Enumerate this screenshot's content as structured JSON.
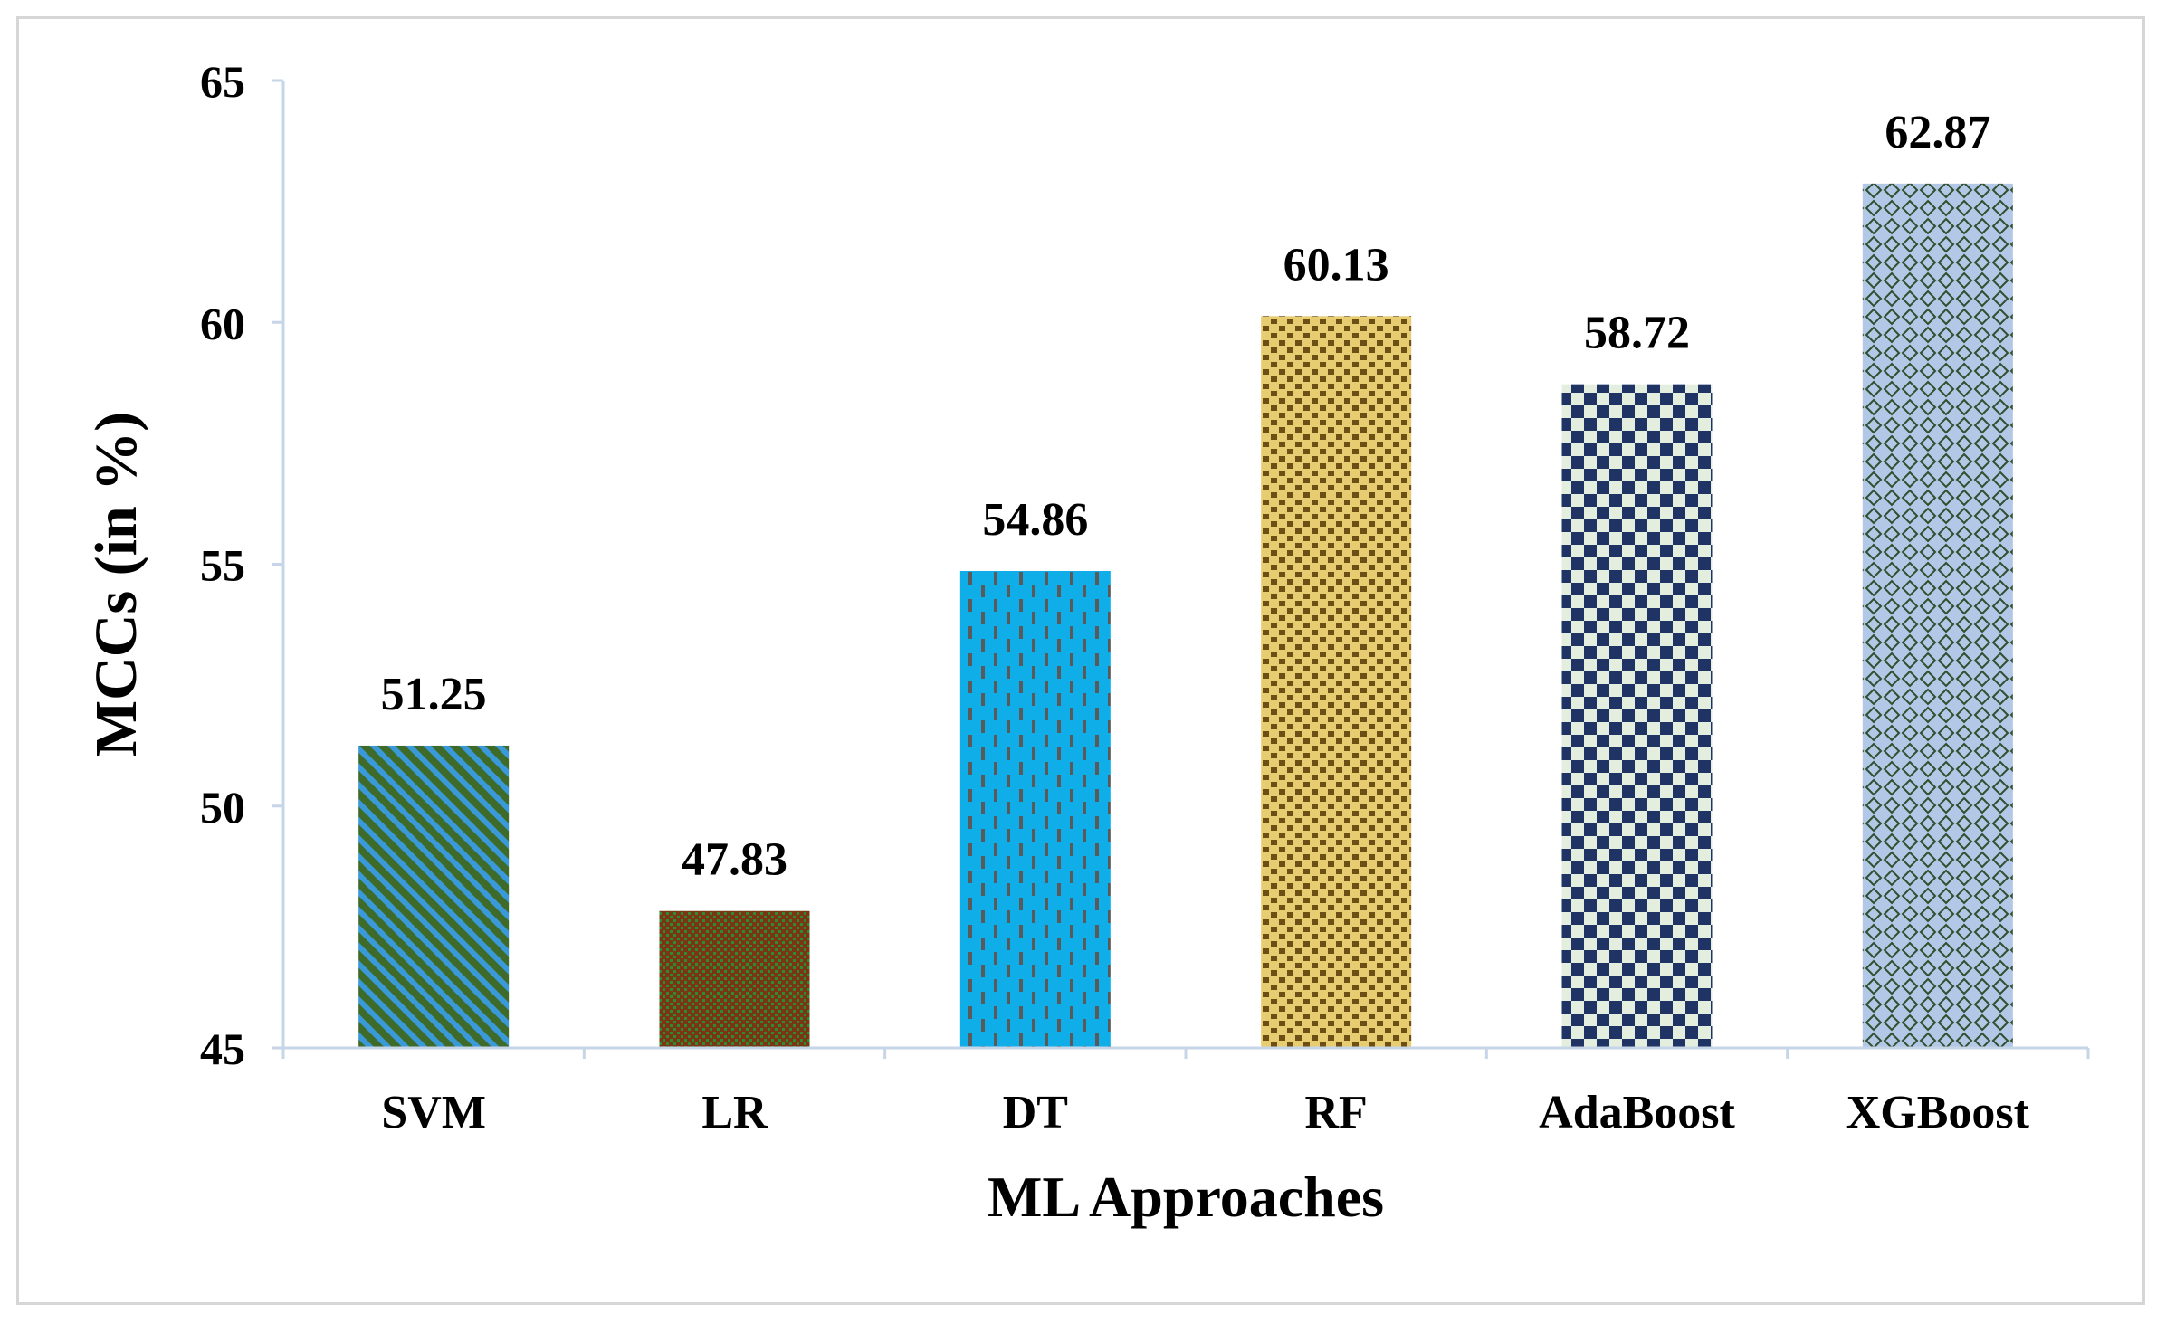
{
  "chart_data": {
    "type": "bar",
    "title": "",
    "xlabel": "ML Approaches",
    "ylabel": "MCCs (in %)",
    "ylim": [
      45,
      65
    ],
    "yticks": [
      "45",
      "50",
      "55",
      "60",
      "65"
    ],
    "grid": false,
    "categories": [
      "SVM",
      "LR",
      "DT",
      "RF",
      "AdaBoost",
      "XGBoost"
    ],
    "values": [
      51.25,
      47.83,
      54.86,
      60.13,
      58.72,
      62.87
    ],
    "value_labels": [
      "51.25",
      "47.83",
      "54.86",
      "60.13",
      "58.72",
      "62.87"
    ],
    "bar_colors": [
      {
        "base": "#3f6b2a",
        "pattern": "#3a9ad9",
        "style": "diagonal"
      },
      {
        "base": "#7a3514",
        "pattern": "#2e8b2e",
        "style": "dots"
      },
      {
        "base": "#10aee8",
        "pattern": "#5a5a5a",
        "style": "dashes"
      },
      {
        "base": "#e8cc72",
        "pattern": "#6b4f15",
        "style": "bricks"
      },
      {
        "base": "#e3eedf",
        "pattern": "#1f3464",
        "style": "checker"
      },
      {
        "base": "#b3c7e6",
        "pattern": "#2f4f2f",
        "style": "diamond"
      }
    ],
    "axis_color": "#c6d5e8"
  }
}
